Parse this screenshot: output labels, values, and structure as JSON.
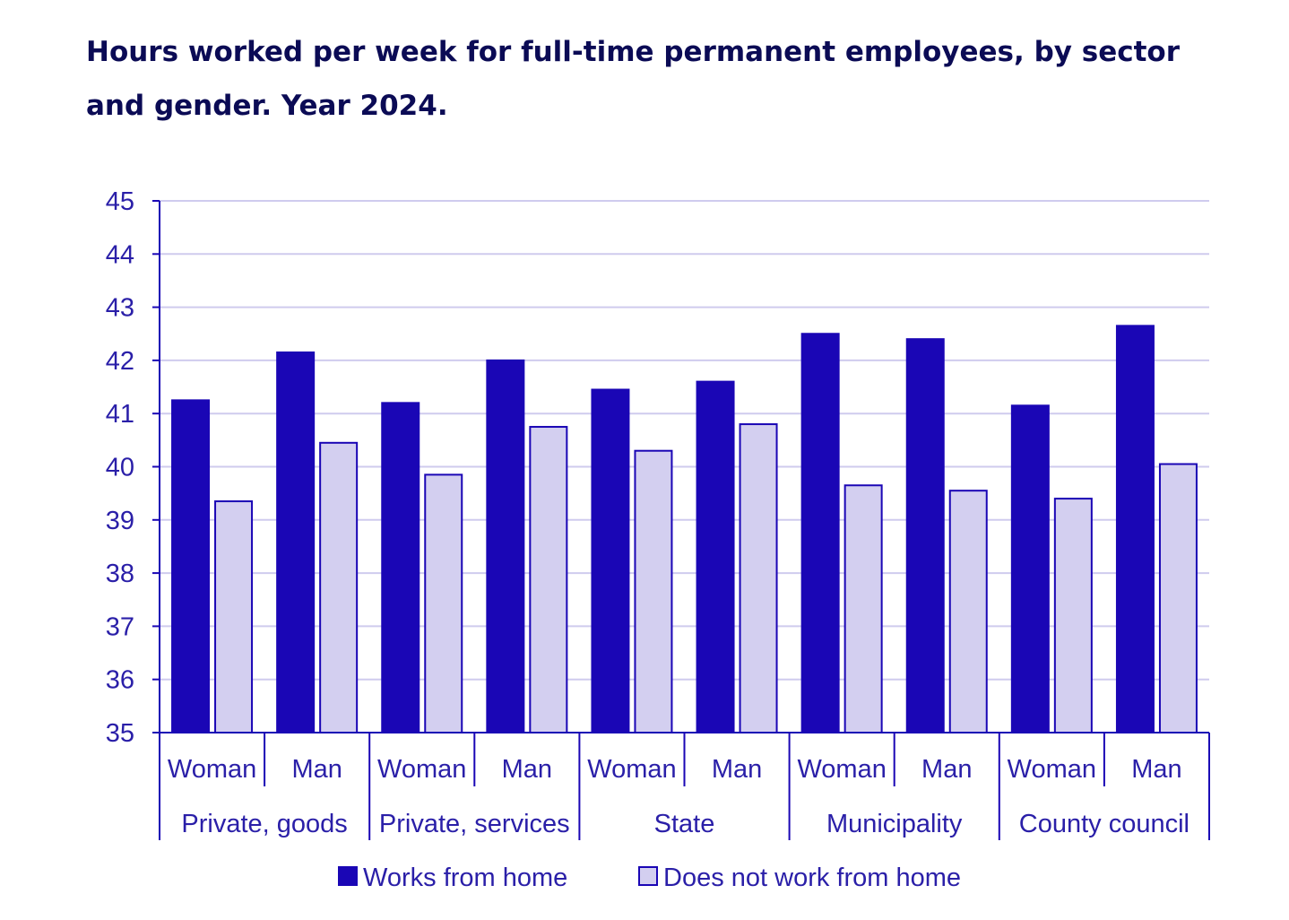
{
  "chart_data": {
    "type": "bar",
    "title": "Hours worked per week for full-time permanent employees, by sector and gender. Year 2024.",
    "groups": [
      "Private, goods",
      "Private, services",
      "State",
      "Municipality",
      "County council"
    ],
    "subcategories": [
      "Woman",
      "Man"
    ],
    "categories": [
      "Private, goods | Woman",
      "Private, goods | Man",
      "Private, services | Woman",
      "Private, services | Man",
      "State | Woman",
      "State | Man",
      "Municipality | Woman",
      "Municipality | Man",
      "County council | Woman",
      "County council | Man"
    ],
    "series": [
      {
        "name": "Works from home",
        "color": "#1a06b5",
        "values": [
          41.25,
          42.15,
          41.2,
          42.0,
          41.45,
          41.6,
          42.5,
          42.4,
          41.15,
          42.65
        ]
      },
      {
        "name": "Does not work from home",
        "color": "#d3cff0",
        "values": [
          39.35,
          40.45,
          39.85,
          40.75,
          40.3,
          40.8,
          39.65,
          39.55,
          39.4,
          40.05
        ]
      }
    ],
    "ylim": [
      35,
      45
    ],
    "yticks": [
      35,
      36,
      37,
      38,
      39,
      40,
      41,
      42,
      43,
      44,
      45
    ],
    "xlabel": "",
    "ylabel": "",
    "grid": true,
    "legend_position": "bottom"
  },
  "colors": {
    "axis": "#1a06b5",
    "grid": "#cfcbee",
    "text": "#2a1fa8",
    "title": "#0b0b55"
  }
}
